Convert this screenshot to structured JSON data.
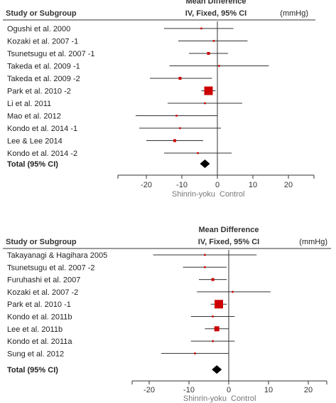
{
  "chart_data": [
    {
      "type": "forest",
      "header": {
        "study_col": "Study or Subgroup",
        "effect_title": "Mean Difference",
        "effect_sub": "IV, Fixed, 95% CI",
        "unit": "(mmHg)"
      },
      "studies": [
        {
          "label": "Ogushi et al. 2000",
          "md": -4.5,
          "lo": -15.0,
          "hi": 4.5,
          "weight": 1
        },
        {
          "label": "Kozaki et al. 2007 -1",
          "md": -1.0,
          "lo": -11.0,
          "hi": 8.5,
          "weight": 1
        },
        {
          "label": "Tsunetsugu et al. 2007 -1",
          "md": -2.5,
          "lo": -8.0,
          "hi": 3.0,
          "weight": 2
        },
        {
          "label": "Takeda et al. 2009 -1",
          "md": 0.5,
          "lo": -13.5,
          "hi": 14.5,
          "weight": 1
        },
        {
          "label": "Takeda et al. 2009 -2",
          "md": -10.5,
          "lo": -19.0,
          "hi": -1.5,
          "weight": 2
        },
        {
          "label": "Park et al. 2010 -2",
          "md": -2.5,
          "lo": -4.5,
          "hi": -0.5,
          "weight": 6
        },
        {
          "label": "Li et al. 2011",
          "md": -3.5,
          "lo": -14.0,
          "hi": 7.0,
          "weight": 1
        },
        {
          "label": "Mao et al. 2012",
          "md": -11.5,
          "lo": -23.0,
          "hi": 0.0,
          "weight": 1
        },
        {
          "label": "Kondo et al. 2014 -1",
          "md": -10.5,
          "lo": -22.0,
          "hi": 1.0,
          "weight": 1
        },
        {
          "label": "Lee & Lee 2014",
          "md": -12.0,
          "lo": -20.0,
          "hi": -4.0,
          "weight": 2
        },
        {
          "label": "Kondo et al. 2014 -2",
          "md": -5.5,
          "lo": -15.0,
          "hi": 4.0,
          "weight": 1
        }
      ],
      "total": {
        "label": "Total (95% CI)",
        "md": -3.5,
        "lo": -5.0,
        "hi": -2.0
      },
      "xaxis": {
        "range": [
          -28,
          28
        ],
        "ticks": [
          -20,
          -10,
          0,
          10,
          20
        ],
        "labels": [
          "-20",
          "-10",
          "0",
          "10",
          "20"
        ]
      },
      "favours": {
        "left": "Shinrin-yoku",
        "right": "Control"
      }
    },
    {
      "type": "forest",
      "header": {
        "study_col": "Study or Subgroup",
        "effect_title": "Mean Difference",
        "effect_sub": "IV, Fixed, 95% CI",
        "unit": "(mmHg)"
      },
      "studies": [
        {
          "label": "Takayanagi & Hagihara 2005",
          "md": -6.0,
          "lo": -19.0,
          "hi": 7.0,
          "weight": 1
        },
        {
          "label": "Tsunetsugu et al. 2007 -2",
          "md": -6.0,
          "lo": -11.5,
          "hi": -0.5,
          "weight": 1
        },
        {
          "label": "Furuhashi et al. 2007",
          "md": -4.0,
          "lo": -7.5,
          "hi": -0.5,
          "weight": 2
        },
        {
          "label": "Kozaki et al. 2007 -2",
          "md": 1.0,
          "lo": -8.0,
          "hi": 10.5,
          "weight": 1
        },
        {
          "label": "Park et al. 2010 -1",
          "md": -2.5,
          "lo": -4.5,
          "hi": -0.5,
          "weight": 6
        },
        {
          "label": "Kondo et al. 2011b",
          "md": -4.0,
          "lo": -9.5,
          "hi": 1.5,
          "weight": 1
        },
        {
          "label": "Lee et al. 2011b",
          "md": -3.0,
          "lo": -6.0,
          "hi": 0.0,
          "weight": 3
        },
        {
          "label": "Kondo et al. 2011a",
          "md": -4.0,
          "lo": -9.5,
          "hi": 1.5,
          "weight": 1
        },
        {
          "label": "Sung et al. 2012",
          "md": -8.5,
          "lo": -17.0,
          "hi": 0.0,
          "weight": 1
        }
      ],
      "total": {
        "label": "Total (95% CI)",
        "md": -3.0,
        "lo": -4.0,
        "hi": -2.0
      },
      "xaxis": {
        "range": [
          -28,
          28
        ],
        "ticks": [
          -20,
          -10,
          0,
          10,
          20
        ],
        "labels": [
          "-20",
          "-10",
          "0",
          "10",
          "20"
        ]
      },
      "favours": {
        "left": "Shinrin-yoku",
        "right": "Control"
      }
    }
  ]
}
